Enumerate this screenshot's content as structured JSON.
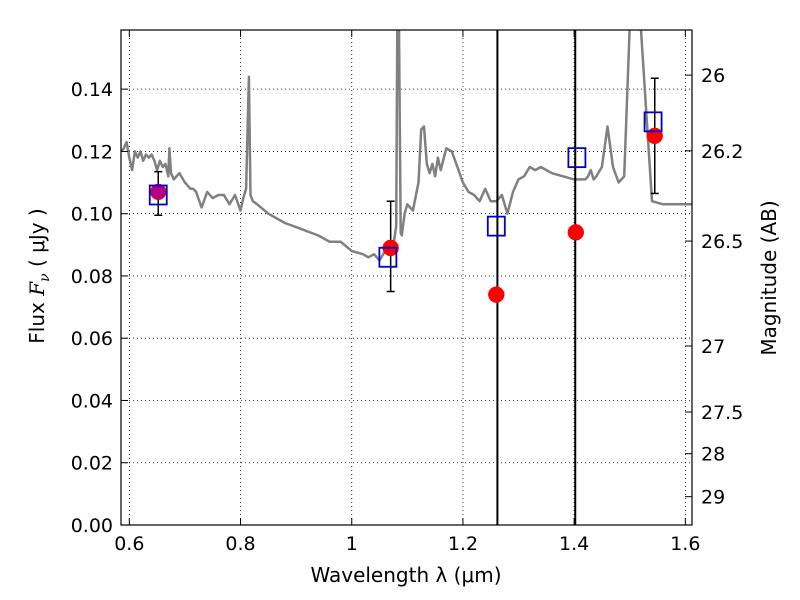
{
  "chart_data": {
    "type": "scatter",
    "xlabel": "Wavelength  λ (μm)",
    "ylabel_prefix": "Flux  ",
    "ylabel_symbol": "F",
    "ylabel_subscript": "ν",
    "ylabel_unit": "  ( μJy )",
    "y2label": "Magnitude (AB)",
    "xlim": [
      0.585,
      1.612
    ],
    "ylim": [
      0.0,
      0.159
    ],
    "grid": true,
    "x_ticks": [
      0.6,
      0.8,
      1.0,
      1.2,
      1.4,
      1.6
    ],
    "x_tick_labels": [
      "0.6",
      "0.8",
      "1",
      "1.2",
      "1.4",
      "1.6"
    ],
    "y_ticks": [
      0.0,
      0.02,
      0.04,
      0.06,
      0.08,
      0.1,
      0.12,
      0.14
    ],
    "y_tick_labels": [
      "0.00",
      "0.02",
      "0.04",
      "0.06",
      "0.08",
      "0.10",
      "0.12",
      "0.14"
    ],
    "y2_ticks": [
      {
        "flux": 0.1445,
        "label": "26"
      },
      {
        "flux": 0.1202,
        "label": "26.2"
      },
      {
        "flux": 0.0912,
        "label": "26.5"
      },
      {
        "flux": 0.0575,
        "label": "27"
      },
      {
        "flux": 0.0363,
        "label": "27.5"
      },
      {
        "flux": 0.0229,
        "label": "28"
      },
      {
        "flux": 0.0091,
        "label": "29"
      }
    ],
    "model_spectrum": {
      "color": "#808080",
      "x": [
        0.585,
        0.59,
        0.595,
        0.6,
        0.605,
        0.61,
        0.615,
        0.62,
        0.625,
        0.63,
        0.635,
        0.64,
        0.645,
        0.65,
        0.655,
        0.66,
        0.665,
        0.67,
        0.672,
        0.675,
        0.68,
        0.69,
        0.7,
        0.71,
        0.715,
        0.72,
        0.73,
        0.74,
        0.75,
        0.76,
        0.77,
        0.78,
        0.79,
        0.8,
        0.805,
        0.81,
        0.815,
        0.818,
        0.822,
        0.83,
        0.85,
        0.88,
        0.91,
        0.94,
        0.96,
        0.98,
        1.0,
        1.02,
        1.03,
        1.04,
        1.05,
        1.06,
        1.07,
        1.075,
        1.08,
        1.082,
        1.085,
        1.088,
        1.09,
        1.095,
        1.1,
        1.11,
        1.12,
        1.125,
        1.13,
        1.135,
        1.14,
        1.145,
        1.15,
        1.155,
        1.16,
        1.17,
        1.18,
        1.19,
        1.2,
        1.21,
        1.22,
        1.23,
        1.24,
        1.25,
        1.26,
        1.27,
        1.28,
        1.29,
        1.3,
        1.31,
        1.32,
        1.33,
        1.34,
        1.36,
        1.38,
        1.4,
        1.41,
        1.42,
        1.425,
        1.43,
        1.435,
        1.44,
        1.45,
        1.46,
        1.47,
        1.48,
        1.49,
        1.5,
        1.51,
        1.52,
        1.54,
        1.56,
        1.58,
        1.6,
        1.612
      ],
      "y": [
        0.12,
        0.121,
        0.123,
        0.118,
        0.114,
        0.12,
        0.118,
        0.12,
        0.117,
        0.119,
        0.118,
        0.119,
        0.117,
        0.114,
        0.117,
        0.115,
        0.116,
        0.112,
        0.121,
        0.113,
        0.111,
        0.113,
        0.11,
        0.108,
        0.108,
        0.107,
        0.102,
        0.107,
        0.105,
        0.106,
        0.106,
        0.103,
        0.106,
        0.101,
        0.105,
        0.108,
        0.144,
        0.106,
        0.104,
        0.103,
        0.1,
        0.097,
        0.095,
        0.093,
        0.091,
        0.091,
        0.088,
        0.087,
        0.086,
        0.087,
        0.085,
        0.088,
        0.088,
        0.09,
        0.096,
        0.16,
        0.16,
        0.094,
        0.093,
        0.1,
        0.103,
        0.101,
        0.11,
        0.127,
        0.128,
        0.116,
        0.113,
        0.116,
        0.112,
        0.118,
        0.114,
        0.121,
        0.12,
        0.115,
        0.11,
        0.107,
        0.106,
        0.104,
        0.108,
        0.104,
        0.104,
        0.106,
        0.1,
        0.107,
        0.111,
        0.112,
        0.115,
        0.114,
        0.115,
        0.113,
        0.112,
        0.111,
        0.111,
        0.111,
        0.112,
        0.114,
        0.111,
        0.112,
        0.115,
        0.128,
        0.115,
        0.11,
        0.112,
        0.16,
        0.16,
        0.16,
        0.104,
        0.103,
        0.103,
        0.103,
        0.103
      ]
    },
    "vertical_lines": [
      1.262,
      1.402
    ],
    "observed": {
      "color": "#ff0000",
      "x": [
        0.652,
        1.07,
        1.26,
        1.403,
        1.545
      ],
      "y": [
        0.107,
        0.089,
        0.074,
        0.094,
        0.125
      ]
    },
    "error_bars": [
      {
        "x": 0.652,
        "low": 0.0995,
        "high": 0.1135
      },
      {
        "x": 1.07,
        "low": 0.075,
        "high": 0.104
      },
      {
        "x": 1.545,
        "low": 0.1065,
        "high": 0.1435
      }
    ],
    "model_bandpass": {
      "color": "#0000cc",
      "x": [
        0.652,
        1.065,
        1.26,
        1.405,
        1.542
      ],
      "y": [
        0.106,
        0.086,
        0.096,
        0.118,
        0.1295
      ]
    },
    "highlight_point": {
      "x": 0.652,
      "y": 0.107,
      "color": "#a000a0"
    }
  }
}
